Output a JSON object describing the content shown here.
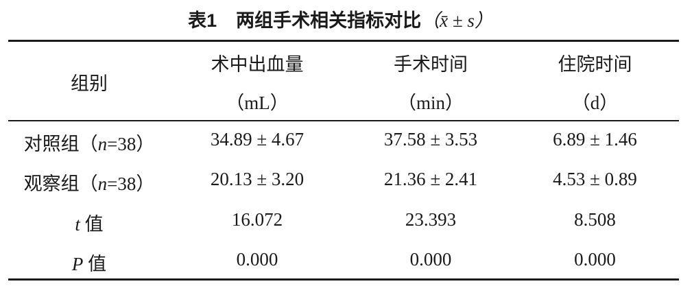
{
  "title": {
    "label": "表1",
    "text": "两组手术相关指标对比",
    "stat": "（x̄ ± s）"
  },
  "header": {
    "group": "组别",
    "columns": [
      {
        "name": "术中出血量",
        "unit": "（mL）"
      },
      {
        "name": "手术时间",
        "unit": "（min）"
      },
      {
        "name": "住院时间",
        "unit": "（d）"
      }
    ]
  },
  "rows": [
    {
      "pre": "对照组（",
      "n": "n",
      "post": "=38）",
      "values": [
        "34.89 ± 4.67",
        "37.58 ± 3.53",
        "6.89 ± 1.46"
      ]
    },
    {
      "pre": "观察组（",
      "n": "n",
      "post": "=38）",
      "values": [
        "20.13 ± 3.20",
        "21.36 ± 2.41",
        "4.53 ± 0.89"
      ]
    },
    {
      "pre": "",
      "n": "t",
      "post": " 值",
      "values": [
        "16.072",
        "23.393",
        "8.508"
      ]
    },
    {
      "pre": "",
      "n": "P",
      "post": " 值",
      "values": [
        "0.000",
        "0.000",
        "0.000"
      ]
    }
  ]
}
